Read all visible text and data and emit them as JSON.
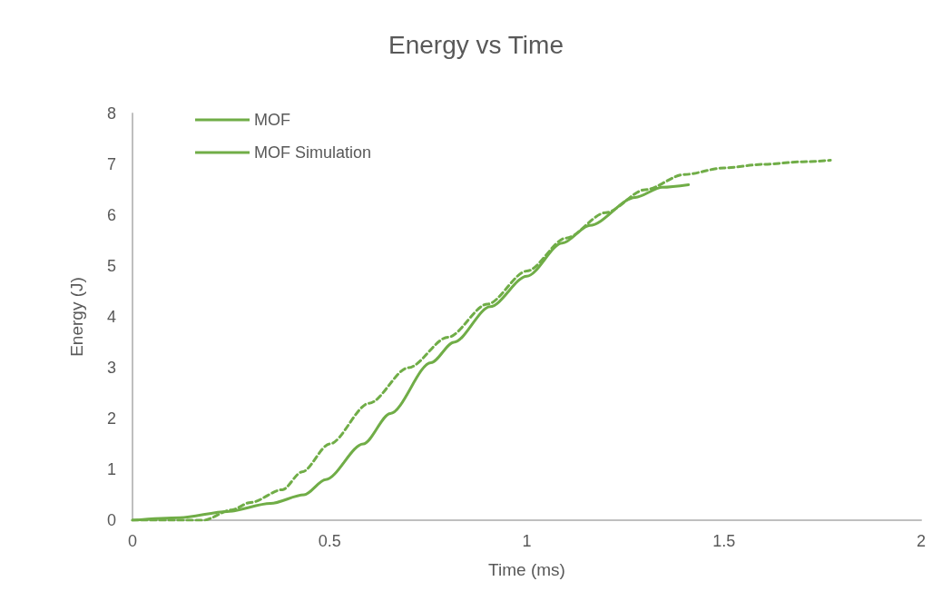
{
  "chart_data": {
    "type": "line",
    "title": "Energy vs Time",
    "xlabel": "Time (ms)",
    "ylabel": "Energy (J)",
    "xlim": [
      0,
      2
    ],
    "xticks": [
      0,
      0.5,
      1,
      1.5,
      2
    ],
    "ylim": [
      0,
      8
    ],
    "yticks": [
      0,
      1,
      2,
      3,
      4,
      5,
      6,
      7,
      8
    ],
    "grid": false,
    "legend": "top left",
    "marker": "none",
    "series": [
      {
        "name": "MOF",
        "color": "#70ad47",
        "line_style": "solid",
        "x": [
          0,
          0.12,
          0.24,
          0.35,
          0.435,
          0.49,
          0.585,
          0.654,
          0.757,
          0.815,
          0.907,
          1.0,
          1.09,
          1.16,
          1.275,
          1.344,
          1.41
        ],
        "values": [
          0,
          0.05,
          0.17,
          0.33,
          0.5,
          0.8,
          1.5,
          2.1,
          3.1,
          3.5,
          4.2,
          4.8,
          5.45,
          5.8,
          6.35,
          6.55,
          6.6
        ]
      },
      {
        "name": "MOF Simulation",
        "color": "#70ad47",
        "line_style": "dashed",
        "x": [
          0,
          0.1,
          0.18,
          0.25,
          0.3,
          0.38,
          0.43,
          0.5,
          0.6,
          0.7,
          0.8,
          0.9,
          1.0,
          1.1,
          1.2,
          1.3,
          1.4,
          1.5,
          1.6,
          1.7,
          1.77
        ],
        "values": [
          0,
          0,
          0,
          0.2,
          0.35,
          0.6,
          0.95,
          1.5,
          2.3,
          3.0,
          3.6,
          4.25,
          4.9,
          5.55,
          6.05,
          6.5,
          6.8,
          6.93,
          7.0,
          7.05,
          7.08
        ]
      }
    ]
  }
}
